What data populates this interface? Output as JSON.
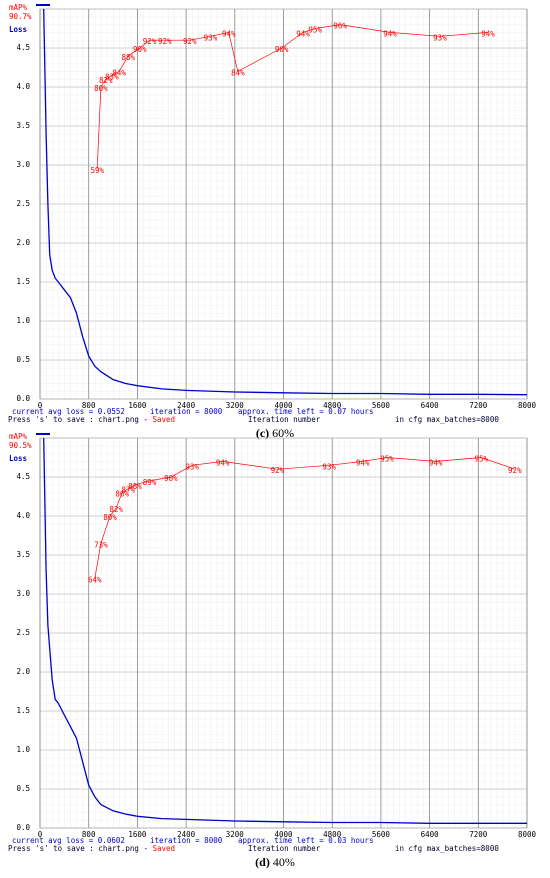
{
  "chart_data": [
    {
      "type": "line",
      "caption_label": "(c)",
      "caption": "60%",
      "annotation": "90.7%",
      "xlim": [
        0,
        8000
      ],
      "xticks": [
        0,
        800,
        1600,
        2400,
        3200,
        4000,
        4800,
        5600,
        6400,
        7200,
        8000
      ],
      "ylim": [
        0,
        5
      ],
      "yticks": [
        {
          "value": 0,
          "label": "0.0"
        },
        0.5,
        {
          "value": 1,
          "label": "1.0"
        },
        1.5,
        {
          "value": 2,
          "label": "2.0"
        },
        2.5,
        {
          "value": 3,
          "label": "3.0"
        },
        3.5,
        {
          "value": 4,
          "label": "4.0"
        },
        4.5
      ],
      "y2lim": [
        0,
        100
      ],
      "grid": true,
      "xlabel": "Iteration number",
      "status": [
        "current avg loss = 0.0552",
        "iteration = 8000",
        "approx. time left = 0.07 hours"
      ],
      "save_note": "Press 's' to save : chart.png - ",
      "saved": "Saved",
      "cfg_note": "in cfg max_batches=8000",
      "series": [
        {
          "name": "mAP%",
          "color": "#ff0000",
          "axis": "y2",
          "x": [
            940,
            1000,
            1080,
            1180,
            1300,
            1450,
            1640,
            1800,
            2050,
            2460,
            2800,
            3100,
            3250,
            3970,
            4320,
            4520,
            4930,
            5750,
            6570,
            7360
          ],
          "values": [
            59,
            80,
            82,
            83,
            84,
            88,
            90,
            92,
            92,
            92,
            93,
            94,
            84,
            90,
            94,
            95,
            96,
            94,
            93,
            94
          ],
          "value_labels": [
            "59%",
            "80%",
            "82%",
            "83%",
            "84%",
            "88%",
            "90%",
            "92%",
            "92%",
            "92%",
            "93%",
            "94%",
            "84%",
            "90%",
            "94%",
            "95%",
            "96%",
            "94%",
            "93%",
            "94%"
          ]
        },
        {
          "name": "Loss",
          "color": "#0000cc",
          "x": [
            60,
            100,
            130,
            160,
            200,
            250,
            300,
            400,
            500,
            600,
            700,
            800,
            900,
            1000,
            1200,
            1400,
            1600,
            2000,
            2400,
            3200,
            4000,
            4800,
            5600,
            6400,
            7200,
            8000
          ],
          "values": [
            5.0,
            3.4,
            2.5,
            1.85,
            1.65,
            1.55,
            1.5,
            1.4,
            1.3,
            1.1,
            0.8,
            0.55,
            0.42,
            0.35,
            0.25,
            0.2,
            0.17,
            0.13,
            0.11,
            0.09,
            0.08,
            0.07,
            0.07,
            0.06,
            0.06,
            0.055
          ]
        }
      ]
    },
    {
      "type": "line",
      "caption_label": "(d)",
      "caption": "40%",
      "annotation": "90.5%",
      "xlim": [
        0,
        8000
      ],
      "xticks": [
        0,
        800,
        1600,
        2400,
        3200,
        4000,
        4800,
        5600,
        6400,
        7200,
        8000
      ],
      "ylim": [
        0,
        5
      ],
      "yticks": [
        {
          "value": 0,
          "label": "0.0"
        },
        0.5,
        {
          "value": 1,
          "label": "1.0"
        },
        1.5,
        {
          "value": 2,
          "label": "2.0"
        },
        2.5,
        {
          "value": 3,
          "label": "3.0"
        },
        3.5,
        {
          "value": 4,
          "label": "4.0"
        },
        4.5
      ],
      "y2lim": [
        0,
        100
      ],
      "grid": true,
      "xlabel": "Iteration number",
      "status": [
        "current avg loss = 0.0602",
        "iteration = 8000",
        "approx. time left = 0.03 hours"
      ],
      "save_note": "Press 's' to save : chart.png - ",
      "saved": "Saved",
      "cfg_note": "in cfg max_batches=8000",
      "series": [
        {
          "name": "mAP%",
          "color": "#ff0000",
          "axis": "y2",
          "x": [
            900,
            1000,
            1150,
            1250,
            1350,
            1450,
            1560,
            1800,
            2150,
            2500,
            3000,
            3900,
            4750,
            5300,
            5700,
            6500,
            7250,
            7800
          ],
          "values": [
            64,
            73,
            80,
            82,
            86,
            87,
            88,
            89,
            90,
            93,
            94,
            92,
            93,
            94,
            95,
            94,
            95,
            92
          ],
          "value_labels": [
            "64%",
            "73%",
            "80%",
            "82%",
            "86%",
            "87%",
            "88%",
            "89%",
            "90%",
            "93%",
            "94%",
            "92%",
            "93%",
            "94%",
            "95%",
            "94%",
            "95%",
            "92%"
          ]
        },
        {
          "name": "Loss",
          "color": "#0000cc",
          "x": [
            60,
            100,
            130,
            160,
            200,
            250,
            300,
            400,
            500,
            600,
            700,
            800,
            900,
            1000,
            1200,
            1400,
            1600,
            2000,
            2400,
            3200,
            4000,
            4800,
            5600,
            6400,
            7200,
            8000
          ],
          "values": [
            5.0,
            3.3,
            2.6,
            2.3,
            1.9,
            1.65,
            1.6,
            1.45,
            1.3,
            1.15,
            0.85,
            0.55,
            0.4,
            0.3,
            0.22,
            0.18,
            0.15,
            0.12,
            0.11,
            0.09,
            0.08,
            0.07,
            0.07,
            0.06,
            0.06,
            0.06
          ]
        }
      ]
    }
  ]
}
